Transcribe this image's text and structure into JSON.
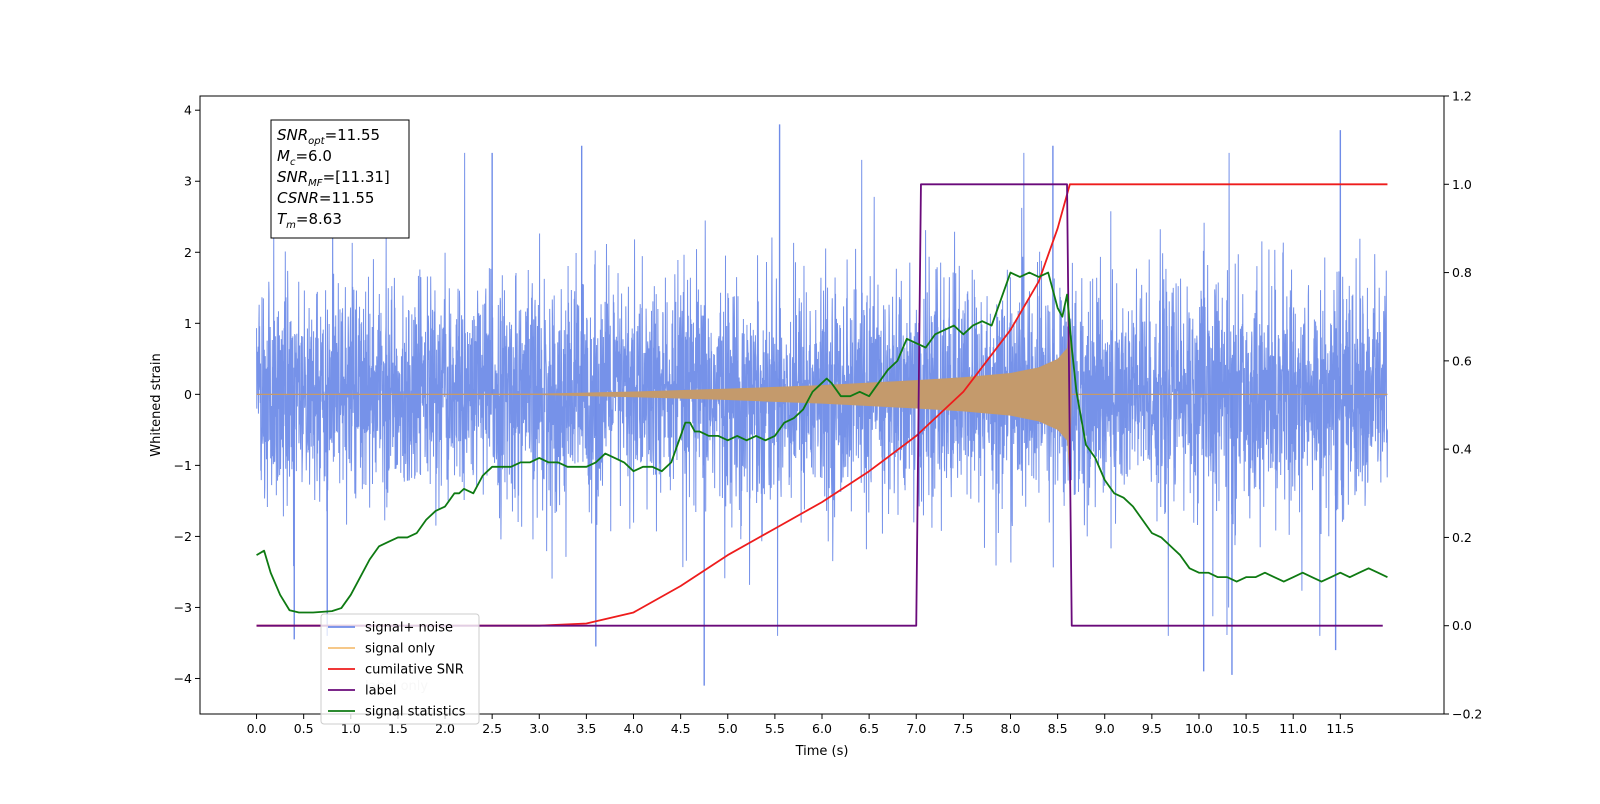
{
  "chart_data": {
    "type": "line",
    "xlabel": "Time (s)",
    "ylabel_left": "Whitened strain",
    "ylabel_right": "",
    "xlim": [
      -0.6,
      12.6
    ],
    "ylim_left": [
      -4.5,
      4.2
    ],
    "ylim_right": [
      -0.2,
      1.2
    ],
    "x_ticks": [
      0.0,
      0.5,
      1.0,
      1.5,
      2.0,
      2.5,
      3.0,
      3.5,
      4.0,
      4.5,
      5.0,
      5.5,
      6.0,
      6.5,
      7.0,
      7.5,
      8.0,
      8.5,
      9.0,
      9.5,
      10.0,
      10.5,
      11.0,
      11.5
    ],
    "x_tick_labels": [
      "0.0",
      "0.5",
      "1.0",
      "1.5",
      "2.0",
      "2.5",
      "3.0",
      "3.5",
      "4.0",
      "4.5",
      "5.0",
      "5.5",
      "6.0",
      "6.5",
      "7.0",
      "7.5",
      "8.0",
      "8.5",
      "9.0",
      "9.5",
      "10.0",
      "10.5",
      "11.0",
      "11.5"
    ],
    "y_left_ticks": [
      4,
      3,
      2,
      1,
      0,
      -1,
      -2,
      -3,
      -4
    ],
    "y_left_tick_labels": [
      "4",
      "3",
      "2",
      "1",
      "0",
      "−1",
      "−2",
      "−3",
      "−4"
    ],
    "y_right_ticks": [
      1.2,
      1.0,
      0.8,
      0.6,
      0.4,
      0.2,
      0.0,
      -0.2
    ],
    "y_right_tick_labels": [
      "1.2",
      "1.0",
      "0.8",
      "0.6",
      "0.4",
      "0.2",
      "0.0",
      "−0.2"
    ],
    "grid": false,
    "legend_position": "lower-left",
    "series": [
      {
        "name": "signal+ noise",
        "axis": "left",
        "color": "#6f8ce8",
        "rendering": "dense noise, mostly within [-1.7, 1.7] with spikes up to about 3.8 and down to about -4.1",
        "t_range": [
          0.0,
          12.0
        ],
        "spikes": [
          {
            "x": 5.55,
            "y": 3.8
          },
          {
            "x": 11.5,
            "y": 3.72
          },
          {
            "x": 2.5,
            "y": 3.4
          },
          {
            "x": 3.45,
            "y": 3.5
          },
          {
            "x": 8.45,
            "y": 3.5
          },
          {
            "x": 4.75,
            "y": -4.1
          },
          {
            "x": 10.35,
            "y": -3.95
          },
          {
            "x": 10.05,
            "y": -3.9
          },
          {
            "x": 0.4,
            "y": -3.45
          },
          {
            "x": 3.6,
            "y": -3.55
          },
          {
            "x": 11.45,
            "y": -3.6
          },
          {
            "x": 0.75,
            "y": -3.4
          }
        ]
      },
      {
        "name": "signal only",
        "axis": "left",
        "color": "#c49a6c",
        "rendering": "chirp envelope growing from 0 to peak at the merger, then returning to 0",
        "envelope": {
          "x": [
            0.0,
            3.0,
            4.0,
            5.0,
            6.0,
            7.0,
            7.5,
            8.0,
            8.3,
            8.5,
            8.6,
            8.63,
            8.65,
            12.0
          ],
          "amplitude": [
            0.0,
            0.01,
            0.04,
            0.08,
            0.13,
            0.2,
            0.24,
            0.3,
            0.38,
            0.5,
            0.65,
            1.2,
            0.0,
            0.0
          ]
        }
      },
      {
        "name": "cumilative SNR",
        "axis": "right",
        "color": "#ee1c1c",
        "x": [
          0.0,
          2.0,
          3.0,
          3.5,
          4.0,
          4.5,
          5.0,
          5.5,
          6.0,
          6.5,
          7.0,
          7.5,
          8.0,
          8.3,
          8.5,
          8.63,
          8.64,
          12.0
        ],
        "values": [
          0.0,
          0.0,
          0.0,
          0.005,
          0.03,
          0.09,
          0.16,
          0.22,
          0.28,
          0.35,
          0.43,
          0.53,
          0.67,
          0.78,
          0.9,
          1.0,
          1.0,
          1.0
        ]
      },
      {
        "name": "label",
        "axis": "right",
        "color": "#6a0a7a",
        "x": [
          0.0,
          7.0,
          7.05,
          8.6,
          8.65,
          11.95
        ],
        "values": [
          0.0,
          0.0,
          1.0,
          1.0,
          0.0,
          0.0
        ]
      },
      {
        "name": "signal statistics",
        "axis": "right",
        "color": "#0e7a12",
        "x": [
          0.0,
          0.08,
          0.15,
          0.25,
          0.35,
          0.45,
          0.6,
          0.8,
          0.9,
          1.0,
          1.1,
          1.2,
          1.3,
          1.4,
          1.5,
          1.6,
          1.7,
          1.8,
          1.9,
          2.0,
          2.1,
          2.15,
          2.2,
          2.3,
          2.4,
          2.5,
          2.6,
          2.7,
          2.8,
          2.9,
          3.0,
          3.1,
          3.2,
          3.3,
          3.4,
          3.5,
          3.6,
          3.7,
          3.8,
          3.9,
          4.0,
          4.1,
          4.2,
          4.3,
          4.4,
          4.5,
          4.55,
          4.6,
          4.65,
          4.7,
          4.8,
          4.9,
          5.0,
          5.1,
          5.2,
          5.3,
          5.4,
          5.5,
          5.6,
          5.7,
          5.8,
          5.9,
          6.0,
          6.05,
          6.1,
          6.2,
          6.3,
          6.4,
          6.5,
          6.6,
          6.7,
          6.8,
          6.9,
          7.0,
          7.1,
          7.2,
          7.3,
          7.4,
          7.5,
          7.6,
          7.7,
          7.8,
          7.9,
          8.0,
          8.1,
          8.2,
          8.3,
          8.4,
          8.5,
          8.55,
          8.6,
          8.65,
          8.7,
          8.8,
          8.9,
          9.0,
          9.1,
          9.2,
          9.3,
          9.4,
          9.5,
          9.6,
          9.7,
          9.8,
          9.9,
          10.0,
          10.1,
          10.2,
          10.3,
          10.4,
          10.5,
          10.6,
          10.7,
          10.8,
          10.9,
          11.0,
          11.1,
          11.2,
          11.3,
          11.4,
          11.5,
          11.6,
          11.7,
          11.8,
          11.9,
          12.0
        ],
        "values": [
          0.16,
          0.17,
          0.12,
          0.07,
          0.035,
          0.03,
          0.03,
          0.033,
          0.04,
          0.07,
          0.11,
          0.15,
          0.18,
          0.19,
          0.2,
          0.2,
          0.21,
          0.24,
          0.26,
          0.27,
          0.3,
          0.3,
          0.31,
          0.3,
          0.34,
          0.36,
          0.36,
          0.36,
          0.37,
          0.37,
          0.38,
          0.37,
          0.37,
          0.36,
          0.36,
          0.36,
          0.37,
          0.39,
          0.38,
          0.37,
          0.35,
          0.36,
          0.36,
          0.35,
          0.37,
          0.43,
          0.46,
          0.46,
          0.44,
          0.44,
          0.43,
          0.43,
          0.42,
          0.43,
          0.42,
          0.43,
          0.42,
          0.43,
          0.46,
          0.47,
          0.49,
          0.53,
          0.55,
          0.56,
          0.55,
          0.52,
          0.52,
          0.53,
          0.52,
          0.55,
          0.58,
          0.6,
          0.65,
          0.64,
          0.63,
          0.66,
          0.67,
          0.68,
          0.66,
          0.68,
          0.69,
          0.68,
          0.74,
          0.8,
          0.79,
          0.8,
          0.79,
          0.8,
          0.72,
          0.7,
          0.75,
          0.63,
          0.53,
          0.41,
          0.38,
          0.33,
          0.3,
          0.29,
          0.27,
          0.24,
          0.21,
          0.2,
          0.18,
          0.16,
          0.13,
          0.12,
          0.12,
          0.11,
          0.11,
          0.1,
          0.11,
          0.11,
          0.12,
          0.11,
          0.1,
          0.11,
          0.12,
          0.11,
          0.1,
          0.11,
          0.12,
          0.11,
          0.12,
          0.13,
          0.12,
          0.11
        ]
      }
    ],
    "annotation_box": {
      "lines": [
        {
          "base": "SNR",
          "sub": "opt",
          "value": "=11.55"
        },
        {
          "base": "M",
          "sub": "c",
          "value": "=6.0"
        },
        {
          "base": "SNR",
          "sub": "MF",
          "value": "=[11.31]"
        },
        {
          "base": "CSNR",
          "sub": "",
          "value": "=11.55"
        },
        {
          "base": "T",
          "sub": "m",
          "value": "=8.63"
        }
      ]
    },
    "legend_entries": [
      {
        "label": "signal+ noise",
        "color": "#6f8ce8"
      },
      {
        "label": "signal only",
        "color": "#f5c078"
      },
      {
        "label": "cumilative SNR",
        "color": "#ee1c1c"
      },
      {
        "label": "label",
        "color": "#6a0a7a"
      },
      {
        "label": "signal statistics",
        "color": "#0e7a12"
      }
    ],
    "hidden_legend_text": "label only"
  }
}
